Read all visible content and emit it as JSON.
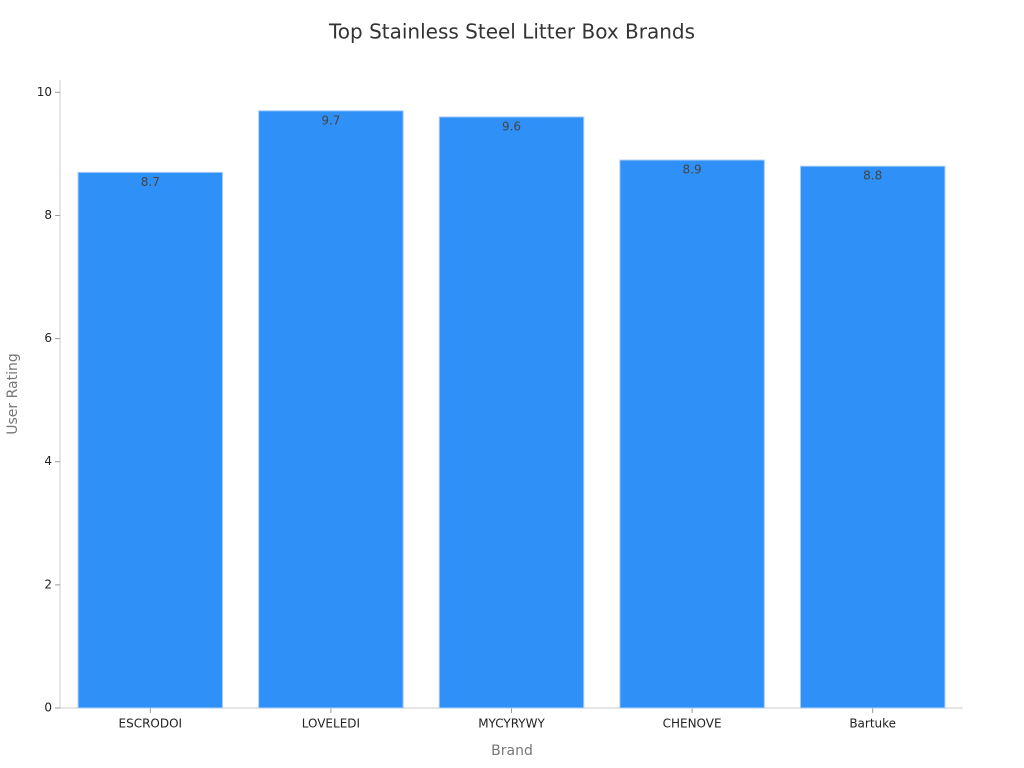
{
  "chart_data": {
    "type": "bar",
    "title": "Top Stainless Steel Litter Box Brands",
    "x_label": "Brand",
    "y_label": "User Rating",
    "categories": [
      "ESCRODOI",
      "LOVELEDI",
      "MYCYRYWY",
      "CHENOVE",
      "Bartuke"
    ],
    "values": [
      8.7,
      9.7,
      9.6,
      8.9,
      8.8
    ],
    "color": "#2f91f8",
    "ylim": [
      0,
      10.2
    ],
    "yticks": [
      0,
      2,
      4,
      6,
      8,
      10
    ],
    "grid": false
  }
}
